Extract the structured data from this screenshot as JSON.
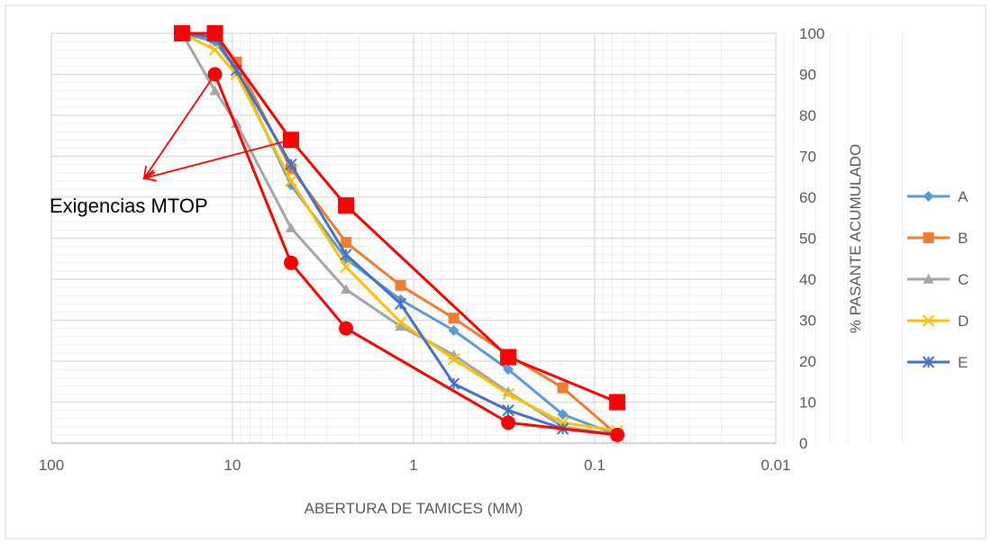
{
  "chart_data": {
    "type": "line",
    "x_scale": "log",
    "x_reversed": true,
    "xlim": [
      100,
      0.01
    ],
    "ylim": [
      0,
      100
    ],
    "xlabel": "ABERTURA DE TAMICES (MM)",
    "ylabel": "% PASANTE ACUMULADO",
    "x_ticks": [
      100,
      10,
      1,
      0.1,
      0.01
    ],
    "x_tick_labels": [
      "100",
      "10",
      "1",
      "0.1",
      "0.01"
    ],
    "y_ticks": [
      0,
      10,
      20,
      30,
      40,
      50,
      60,
      70,
      80,
      90,
      100
    ],
    "grid": true,
    "legend_position": "right",
    "annotation": {
      "text": "Exigencias MTOP",
      "color": "#ff0000"
    },
    "sieve_sizes_mm": [
      19,
      12.5,
      9.5,
      4.75,
      2.36,
      1.18,
      0.6,
      0.3,
      0.15,
      0.075
    ],
    "series": [
      {
        "name": "A",
        "color": "#5b9bd5",
        "marker": "diamond",
        "values": [
          100,
          98,
          91,
          63,
          45,
          35,
          27.5,
          18,
          7,
          2
        ]
      },
      {
        "name": "B",
        "color": "#ed7d31",
        "marker": "square",
        "values": [
          100,
          100,
          93,
          67,
          49,
          38.5,
          30.5,
          21.5,
          13.5,
          2
        ]
      },
      {
        "name": "C",
        "color": "#a5a5a5",
        "marker": "triangle",
        "values": [
          100,
          86,
          78,
          52.5,
          37.5,
          28.5,
          21.5,
          12.5,
          4,
          2
        ]
      },
      {
        "name": "D",
        "color": "#ffc000",
        "marker": "x",
        "values": [
          100,
          96,
          90,
          64,
          43,
          29.5,
          20.5,
          12,
          5,
          3
        ]
      },
      {
        "name": "E",
        "color": "#4472c4",
        "marker": "star",
        "values": [
          100,
          99,
          91,
          68,
          46,
          34,
          14.5,
          8,
          3.5,
          2
        ]
      }
    ],
    "limits": [
      {
        "color": "#ff0000",
        "marker": "square",
        "x": [
          19,
          12.5,
          4.75,
          2.36,
          0.3,
          0.075
        ],
        "values": [
          100,
          100,
          74,
          58,
          21,
          10
        ]
      },
      {
        "color": "#ff0000",
        "marker": "circle",
        "x": [
          12.5,
          4.75,
          2.36,
          0.3,
          0.075
        ],
        "values": [
          90,
          44,
          28,
          5,
          2
        ]
      }
    ]
  }
}
